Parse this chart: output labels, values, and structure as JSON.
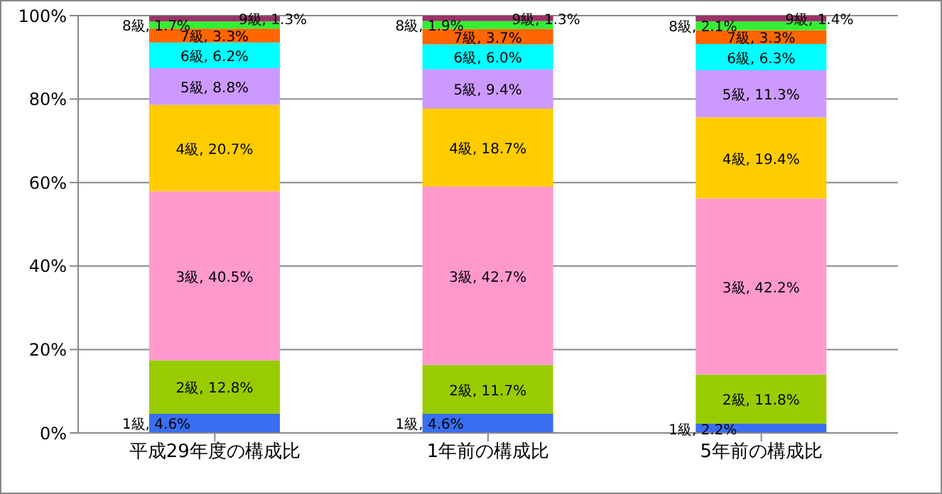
{
  "chart_data": {
    "type": "bar",
    "stacked": true,
    "categories": [
      "平成29年度の構成比",
      "1年前の構成比",
      "5年前の構成比"
    ],
    "series": [
      {
        "color": "#3a6ef0",
        "values": [
          4.6,
          4.6,
          2.2
        ],
        "value_labels": [
          "1級, 4.6%",
          "1級, 4.6%",
          "1級, 2.2%"
        ]
      },
      {
        "color": "#99cc00",
        "values": [
          12.8,
          11.7,
          11.8
        ],
        "value_labels": [
          "2級, 12.8%",
          "2級, 11.7%",
          "2級, 11.8%"
        ]
      },
      {
        "color": "#ff99cc",
        "values": [
          40.5,
          42.7,
          42.2
        ],
        "value_labels": [
          "3級, 40.5%",
          "3級, 42.7%",
          "3級, 42.2%"
        ]
      },
      {
        "color": "#ffcc00",
        "values": [
          20.7,
          18.7,
          19.4
        ],
        "value_labels": [
          "4級, 20.7%",
          "4級, 18.7%",
          "4級, 19.4%"
        ]
      },
      {
        "color": "#cc99ff",
        "values": [
          8.8,
          9.4,
          11.3
        ],
        "value_labels": [
          "5級, 8.8%",
          "5級, 9.4%",
          "5級, 11.3%"
        ]
      },
      {
        "color": "#00ffff",
        "values": [
          6.2,
          6.0,
          6.3
        ],
        "value_labels": [
          "6級, 6.2%",
          "6級, 6.0%",
          "6級, 6.3%"
        ]
      },
      {
        "color": "#ff6600",
        "values": [
          3.3,
          3.7,
          3.3
        ],
        "value_labels": [
          "7級, 3.3%",
          "7級, 3.7%",
          "7級, 3.3%"
        ]
      },
      {
        "color": "#33ee33",
        "values": [
          1.7,
          1.9,
          2.1
        ],
        "value_labels": [
          "8級, 1.7%",
          "8級, 1.9%",
          "8級, 2.1%"
        ]
      },
      {
        "color": "#993366",
        "values": [
          1.3,
          1.3,
          1.4
        ],
        "value_labels": [
          "9級, 1.3%",
          "9級, 1.3%",
          "9級, 1.4%"
        ]
      }
    ],
    "ylim": [
      0,
      100
    ],
    "yticks": [
      {
        "value": 0,
        "label": "0%"
      },
      {
        "value": 20,
        "label": "20%"
      },
      {
        "value": 40,
        "label": "40%"
      },
      {
        "value": 60,
        "label": "60%"
      },
      {
        "value": 80,
        "label": "80%"
      },
      {
        "value": 100,
        "label": "100%"
      }
    ],
    "grid": "y",
    "legend": false
  }
}
